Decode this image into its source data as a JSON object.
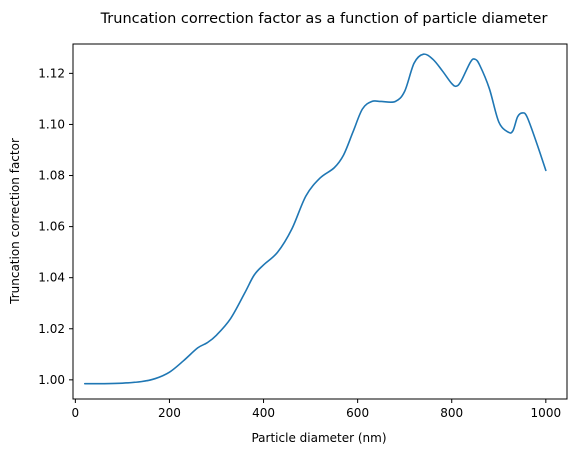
{
  "chart_data": {
    "type": "line",
    "title": "Truncation correction factor as a function of particle diameter",
    "xlabel": "Particle diameter (nm)",
    "ylabel": "Truncation correction factor",
    "xlim": [
      -5,
      1045
    ],
    "ylim": [
      0.9925,
      1.1315
    ],
    "xticks": [
      0,
      200,
      400,
      600,
      800,
      1000
    ],
    "xtick_labels": [
      "0",
      "200",
      "400",
      "600",
      "800",
      "1000"
    ],
    "yticks": [
      1.0,
      1.02,
      1.04,
      1.06,
      1.08,
      1.1,
      1.12
    ],
    "ytick_labels": [
      "1.00",
      "1.02",
      "1.04",
      "1.06",
      "1.08",
      "1.10",
      "1.12"
    ],
    "grid": false,
    "legend": "none",
    "series": [
      {
        "color": "#1f77b4",
        "x": [
          20,
          60,
          100,
          140,
          170,
          200,
          230,
          260,
          280,
          300,
          330,
          360,
          380,
          400,
          430,
          460,
          490,
          520,
          550,
          570,
          590,
          610,
          630,
          650,
          680,
          700,
          720,
          740,
          760,
          780,
          800,
          810,
          820,
          840,
          850,
          860,
          880,
          900,
          920,
          930,
          940,
          950,
          960,
          980,
          1000
        ],
        "y": [
          0.9985,
          0.9985,
          0.9987,
          0.9993,
          1.0005,
          1.003,
          1.0075,
          1.0125,
          1.0145,
          1.0175,
          1.024,
          1.034,
          1.041,
          1.045,
          1.05,
          1.059,
          1.072,
          1.079,
          1.083,
          1.088,
          1.097,
          1.106,
          1.109,
          1.109,
          1.109,
          1.113,
          1.124,
          1.1275,
          1.1255,
          1.121,
          1.116,
          1.115,
          1.117,
          1.1245,
          1.1255,
          1.123,
          1.114,
          1.101,
          1.097,
          1.0975,
          1.103,
          1.1045,
          1.103,
          1.093,
          1.082
        ]
      }
    ]
  }
}
